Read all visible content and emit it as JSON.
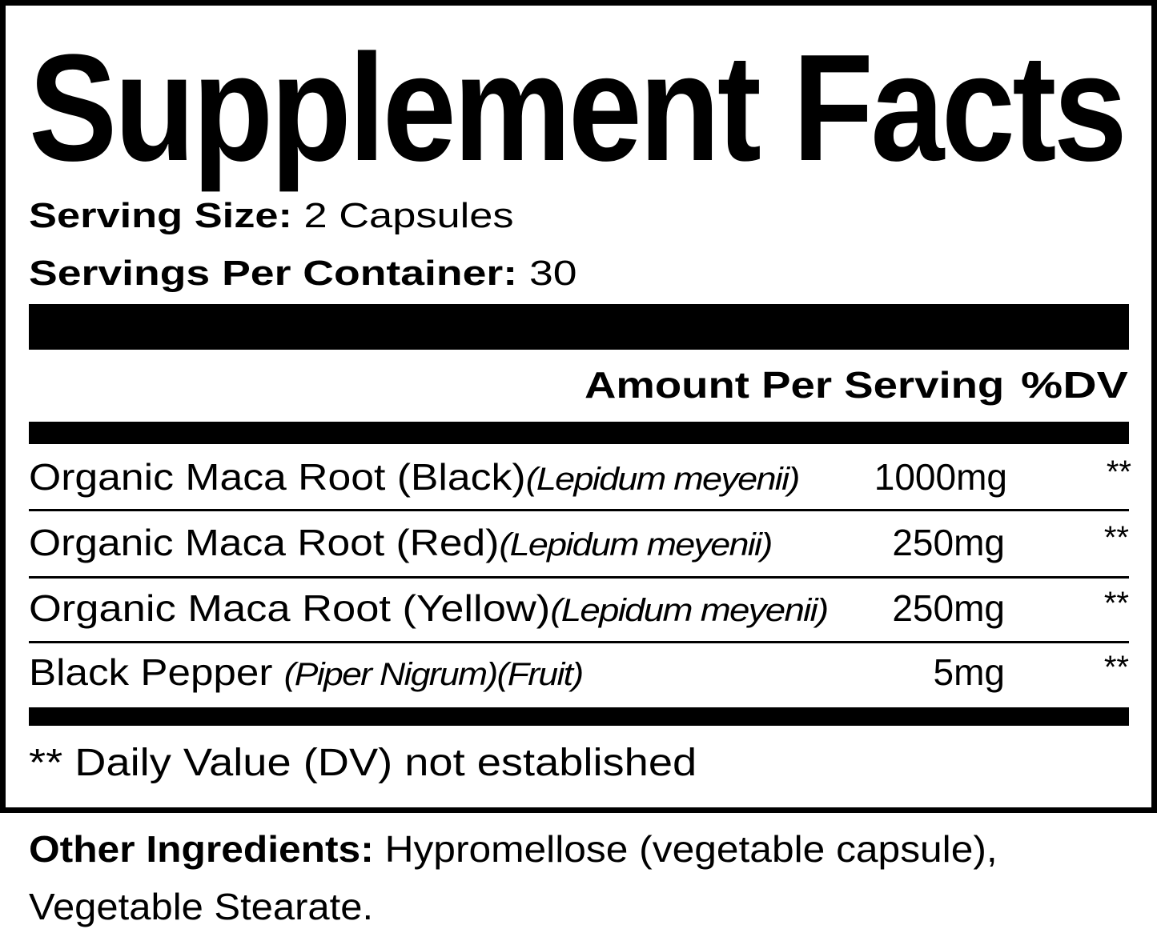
{
  "title": "Supplement Facts",
  "serving_size": {
    "label": "Serving Size:",
    "value": "2 Capsules"
  },
  "servings_per_container": {
    "label": "Servings Per Container:",
    "value": "30"
  },
  "header": {
    "amount": "Amount Per Serving",
    "dv": "%DV"
  },
  "rows": [
    {
      "name": "Organic Maca Root (Black)",
      "latin": "(Lepidum meyenii)",
      "amount": "1000mg",
      "dv": "**"
    },
    {
      "name": "Organic Maca Root (Red)",
      "latin": "(Lepidum meyenii)",
      "amount": "250mg",
      "dv": "**"
    },
    {
      "name": "Organic Maca Root (Yellow)",
      "latin": "(Lepidum meyenii)",
      "amount": "250mg",
      "dv": "**"
    },
    {
      "name": "Black Pepper ",
      "latin": "(Piper Nigrum)(Fruit)",
      "amount": "5mg",
      "dv": "**"
    }
  ],
  "footnote": "** Daily Value (DV) not established",
  "other_ingredients": {
    "label": "Other Ingredients:",
    "line1": " Hypromellose (vegetable capsule),",
    "line2": "Vegetable Stearate."
  }
}
